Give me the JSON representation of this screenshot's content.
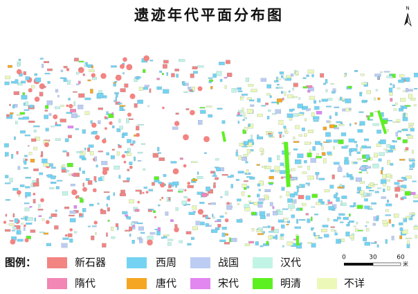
{
  "header": {
    "title": "遗迹年代平面分布图",
    "north": "N"
  },
  "legend": {
    "label": "图例：",
    "items": [
      {
        "label": "新石器",
        "color": "#f28482"
      },
      {
        "label": "西周",
        "color": "#74d3f2"
      },
      {
        "label": "战国",
        "color": "#bcccf2"
      },
      {
        "label": "汉代",
        "color": "#c2f4e6"
      },
      {
        "label": "隋代",
        "color": "#f286b4"
      },
      {
        "label": "唐代",
        "color": "#f5a623"
      },
      {
        "label": "宋代",
        "color": "#e286f0"
      },
      {
        "label": "明清",
        "color": "#5df021"
      },
      {
        "label": "不详",
        "color": "#ebf8b8"
      }
    ]
  },
  "scale": {
    "ticks": [
      "0",
      "30",
      "60"
    ],
    "unit": "米"
  }
}
